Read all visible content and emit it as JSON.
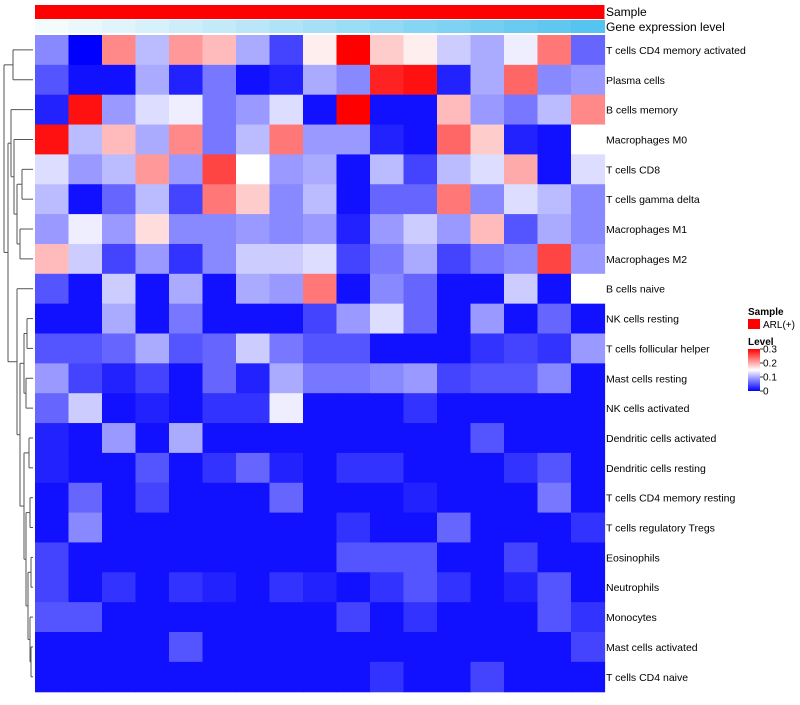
{
  "chart_data": {
    "type": "heatmap",
    "title": "",
    "annotation_tracks": [
      {
        "label": "Sample",
        "kind": "categorical",
        "values": [
          "ARL(+)"
        ]
      },
      {
        "label": "Gene expression level",
        "kind": "gradient"
      }
    ],
    "rows": [
      "T cells CD4 memory activated",
      "Plasma cells",
      "B cells memory",
      "Macrophages M0",
      "T cells CD8",
      "T cells gamma delta",
      "Macrophages M1",
      "Macrophages M2",
      "B cells naive",
      "NK cells resting",
      "T cells follicular helper",
      "Mast cells resting",
      "NK cells activated",
      "Dendritic cells activated",
      "Dendritic cells resting",
      "T cells CD4 memory resting",
      "T cells regulatory  Tregs",
      "Eosinophils",
      "Neutrophils",
      "Monocytes",
      "Mast cells activated",
      "T cells CD4 naive"
    ],
    "n_columns": 17,
    "values": [
      [
        0.08,
        0.0,
        0.22,
        0.11,
        0.21,
        0.19,
        0.1,
        0.04,
        0.16,
        0.3,
        0.18,
        0.16,
        0.12,
        0.1,
        0.14,
        0.23,
        0.06
      ],
      [
        0.05,
        0.01,
        0.01,
        0.1,
        0.02,
        0.07,
        0.01,
        0.02,
        0.1,
        0.08,
        0.28,
        0.29,
        0.02,
        0.1,
        0.24,
        0.08,
        0.09
      ],
      [
        0.02,
        0.29,
        0.09,
        0.13,
        0.14,
        0.07,
        0.09,
        0.13,
        0.01,
        0.3,
        0.01,
        0.01,
        0.19,
        0.09,
        0.07,
        0.11,
        0.22
      ],
      [
        0.29,
        0.11,
        0.19,
        0.1,
        0.22,
        0.07,
        0.11,
        0.23,
        0.09,
        0.09,
        0.02,
        0.01,
        0.24,
        0.18,
        0.02,
        0.01,
        0.15
      ],
      [
        0.13,
        0.09,
        0.11,
        0.21,
        0.09,
        0.26,
        0.15,
        0.09,
        0.1,
        0.01,
        0.11,
        0.04,
        0.11,
        0.13,
        0.2,
        0.01,
        0.13
      ],
      [
        0.11,
        0.01,
        0.06,
        0.11,
        0.04,
        0.23,
        0.18,
        0.08,
        0.11,
        0.01,
        0.06,
        0.06,
        0.23,
        0.08,
        0.13,
        0.11,
        0.08
      ],
      [
        0.09,
        0.14,
        0.09,
        0.17,
        0.08,
        0.08,
        0.09,
        0.08,
        0.09,
        0.02,
        0.09,
        0.12,
        0.09,
        0.19,
        0.05,
        0.1,
        0.08
      ],
      [
        0.19,
        0.12,
        0.04,
        0.09,
        0.03,
        0.08,
        0.12,
        0.12,
        0.13,
        0.04,
        0.07,
        0.1,
        0.04,
        0.07,
        0.08,
        0.26,
        0.09
      ],
      [
        0.05,
        0.01,
        0.12,
        0.01,
        0.1,
        0.01,
        0.1,
        0.09,
        0.23,
        0.01,
        0.08,
        0.06,
        0.01,
        0.01,
        0.12,
        0.01,
        0.15
      ],
      [
        0.01,
        0.01,
        0.1,
        0.01,
        0.07,
        0.01,
        0.01,
        0.01,
        0.04,
        0.09,
        0.13,
        0.06,
        0.01,
        0.09,
        0.01,
        0.06,
        0.01
      ],
      [
        0.05,
        0.05,
        0.06,
        0.1,
        0.05,
        0.06,
        0.12,
        0.07,
        0.05,
        0.05,
        0.01,
        0.01,
        0.01,
        0.03,
        0.04,
        0.03,
        0.09
      ],
      [
        0.09,
        0.04,
        0.02,
        0.04,
        0.01,
        0.06,
        0.02,
        0.1,
        0.07,
        0.07,
        0.08,
        0.09,
        0.04,
        0.05,
        0.05,
        0.08,
        0.01
      ],
      [
        0.06,
        0.12,
        0.01,
        0.02,
        0.01,
        0.03,
        0.03,
        0.14,
        0.01,
        0.01,
        0.01,
        0.03,
        0.01,
        0.01,
        0.01,
        0.01,
        0.01
      ],
      [
        0.02,
        0.01,
        0.09,
        0.01,
        0.1,
        0.01,
        0.01,
        0.01,
        0.01,
        0.01,
        0.01,
        0.01,
        0.01,
        0.05,
        0.01,
        0.01,
        0.01
      ],
      [
        0.02,
        0.01,
        0.01,
        0.05,
        0.01,
        0.03,
        0.06,
        0.02,
        0.01,
        0.03,
        0.03,
        0.01,
        0.01,
        0.01,
        0.03,
        0.05,
        0.01
      ],
      [
        0.01,
        0.06,
        0.01,
        0.04,
        0.01,
        0.01,
        0.01,
        0.06,
        0.01,
        0.01,
        0.01,
        0.02,
        0.01,
        0.01,
        0.01,
        0.07,
        0.01
      ],
      [
        0.01,
        0.08,
        0.01,
        0.01,
        0.01,
        0.01,
        0.01,
        0.01,
        0.01,
        0.03,
        0.01,
        0.01,
        0.06,
        0.01,
        0.01,
        0.01,
        0.03
      ],
      [
        0.04,
        0.01,
        0.01,
        0.01,
        0.01,
        0.01,
        0.01,
        0.01,
        0.01,
        0.05,
        0.05,
        0.05,
        0.01,
        0.01,
        0.04,
        0.01,
        0.01
      ],
      [
        0.04,
        0.01,
        0.03,
        0.01,
        0.03,
        0.02,
        0.01,
        0.03,
        0.02,
        0.01,
        0.03,
        0.05,
        0.03,
        0.01,
        0.02,
        0.05,
        0.01
      ],
      [
        0.05,
        0.05,
        0.01,
        0.01,
        0.01,
        0.01,
        0.01,
        0.01,
        0.01,
        0.04,
        0.01,
        0.03,
        0.01,
        0.01,
        0.01,
        0.05,
        0.03
      ],
      [
        0.01,
        0.01,
        0.01,
        0.01,
        0.05,
        0.01,
        0.01,
        0.01,
        0.01,
        0.01,
        0.01,
        0.01,
        0.01,
        0.01,
        0.01,
        0.01,
        0.04
      ],
      [
        0.01,
        0.01,
        0.01,
        0.01,
        0.01,
        0.01,
        0.01,
        0.01,
        0.01,
        0.01,
        0.03,
        0.01,
        0.01,
        0.04,
        0.01,
        0.01,
        0.01
      ]
    ],
    "color_scale": {
      "min": 0,
      "mid": 0.15,
      "max": 0.3,
      "low": "#0000ff",
      "mid_color": "#ffffff",
      "high": "#ff0000"
    },
    "legend": {
      "sample_title": "Sample",
      "sample_entry": "ARL(+)",
      "sample_color": "#ff0000",
      "level_title": "Level",
      "level_ticks": [
        0.3,
        0.2,
        0.1,
        0
      ],
      "level_tick_labels": [
        "0.3",
        "0.2",
        "0.1",
        "0"
      ]
    },
    "annotation_colors": {
      "sample": "#ff0000",
      "gradient_start": "#f4fbfd",
      "gradient_end": "#56c4f0"
    }
  }
}
